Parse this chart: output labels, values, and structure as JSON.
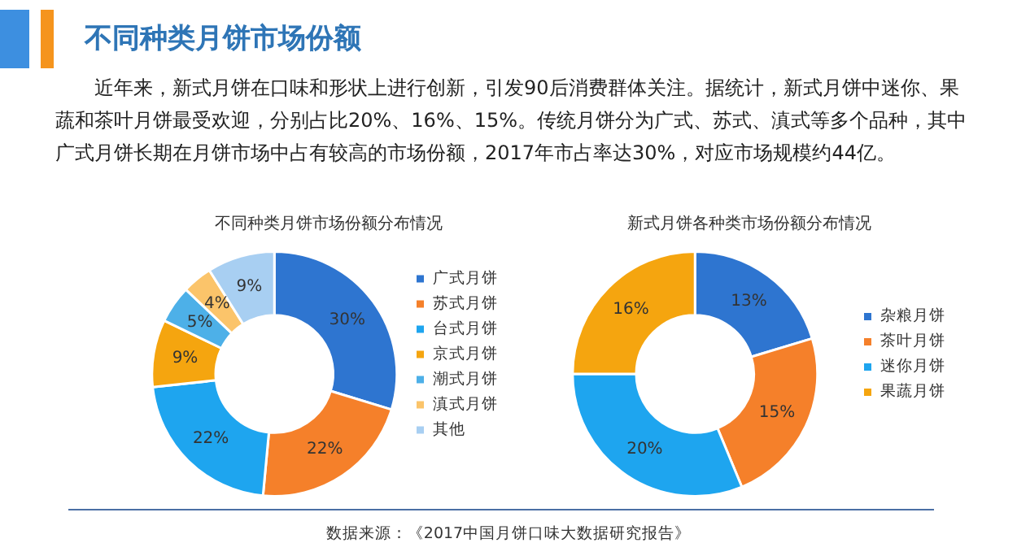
{
  "chart_data": [
    {
      "type": "donut",
      "title": "不同种类月饼市场份额分布情况",
      "categories": [
        "广式月饼",
        "苏式月饼",
        "台式月饼",
        "京式月饼",
        "潮式月饼",
        "滇式月饼",
        "其他"
      ],
      "values": [
        30,
        22,
        22,
        9,
        5,
        4,
        9
      ],
      "value_labels": [
        "30%",
        "22%",
        "22%",
        "9%",
        "5%",
        "4%",
        "9%"
      ],
      "colors": [
        "#2e75d0",
        "#f5802a",
        "#1ea5ef",
        "#f5a50f",
        "#4db0e8",
        "#fbc46a",
        "#a8cff2"
      ],
      "legend": "right",
      "annotations": [
        "不同种类月饼市场份额",
        "近年来，新式月饼在口味和形状上进行创新，引发90后消费群体关注。据统计，新式月饼中迷你、果蔬和茶叶月饼最受欢迎，分别占比20%、16%、15%。传统月饼分为广式、苏式、滇式等多个品种，其中广式月饼长期在月饼市场中占有较高的市场份额，2017年市占率达30%，对应市场规模约44亿。"
      ]
    },
    {
      "type": "donut",
      "title": "新式月饼各种类市场份额分布情况",
      "categories": [
        "杂粮月饼",
        "茶叶月饼",
        "迷你月饼",
        "果蔬月饼"
      ],
      "values": [
        13,
        15,
        20,
        16
      ],
      "value_labels": [
        "13%",
        "15%",
        "20%",
        "16%"
      ],
      "colors": [
        "#2e75d0",
        "#f5802a",
        "#1ea5ef",
        "#f5a50f"
      ],
      "legend": "right",
      "annotations": [
        "数据来源：《2017中国月饼口味大数据研究报告》"
      ]
    }
  ]
}
